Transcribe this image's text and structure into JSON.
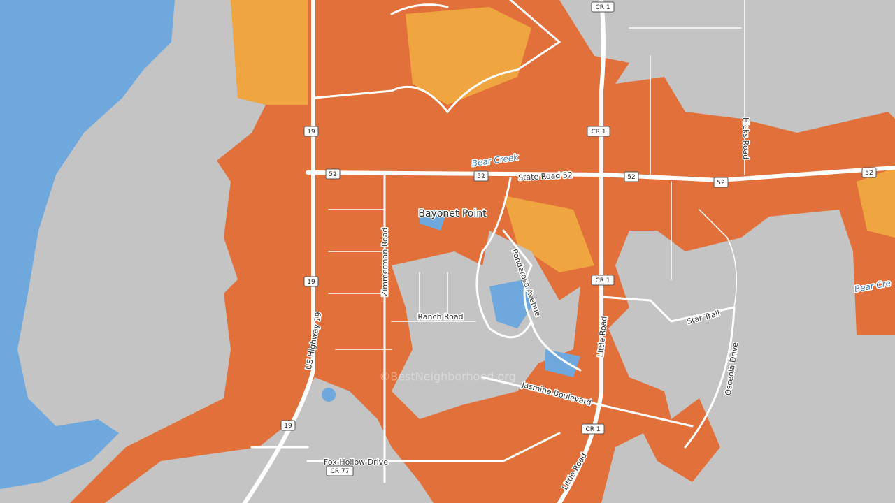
{
  "labels": [
    {
      "text": "Bayonet Point"
    },
    {
      "text": "Bear Creek"
    },
    {
      "text": "Bear Cre"
    },
    {
      "text": "State Road 52"
    },
    {
      "text": "Zimmerman Road"
    },
    {
      "text": "Ponderosa Avenue"
    },
    {
      "text": "Ranch Road"
    },
    {
      "text": "US Highway 19"
    },
    {
      "text": "Little Road"
    },
    {
      "text": "Little Road"
    },
    {
      "text": "Star Trail"
    },
    {
      "text": "Osceola Drive"
    },
    {
      "text": "Hicks Road"
    },
    {
      "text": "Jasmine Boulevard"
    },
    {
      "text": "Fox Hollow Drive"
    },
    {
      "text": "©BestNeighborhood.org"
    }
  ],
  "shields": [
    {
      "text": "CR 1"
    },
    {
      "text": "CR 1"
    },
    {
      "text": "CR 1"
    },
    {
      "text": "CR 1"
    },
    {
      "text": "19"
    },
    {
      "text": "19"
    },
    {
      "text": "19"
    },
    {
      "text": "52"
    },
    {
      "text": "52"
    },
    {
      "text": "52"
    },
    {
      "text": "52"
    },
    {
      "text": "52"
    },
    {
      "text": "CR 77"
    }
  ]
}
